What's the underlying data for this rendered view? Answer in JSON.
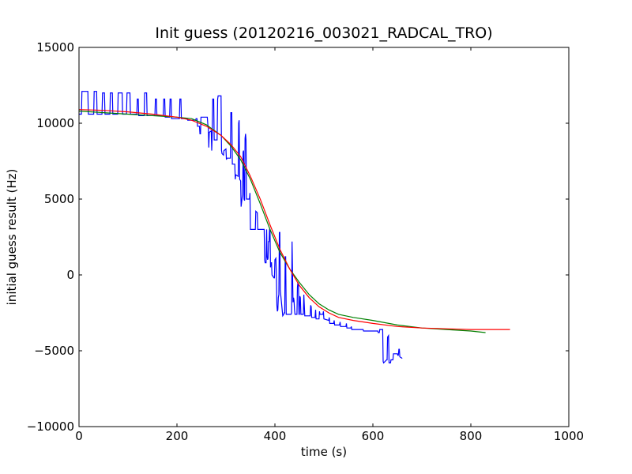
{
  "chart_data": {
    "type": "line",
    "title": "Init guess (20120216_003021_RADCAL_TRO)",
    "xlabel": "time (s)",
    "ylabel": "initial guess result (Hz)",
    "xlim": [
      0,
      1000
    ],
    "ylim": [
      -10000,
      15000
    ],
    "xticks": [
      0,
      200,
      400,
      600,
      800,
      1000
    ],
    "yticks": [
      -10000,
      -5000,
      0,
      5000,
      10000,
      15000
    ],
    "grid": false,
    "legend": "none",
    "series": [
      {
        "color": "#0000ff",
        "points": [
          [
            0,
            10600
          ],
          [
            5,
            10600
          ],
          [
            6,
            12100
          ],
          [
            18,
            12100
          ],
          [
            19,
            10600
          ],
          [
            30,
            10600
          ],
          [
            31,
            12100
          ],
          [
            36,
            12100
          ],
          [
            37,
            10600
          ],
          [
            47,
            10600
          ],
          [
            48,
            12000
          ],
          [
            52,
            12000
          ],
          [
            53,
            10600
          ],
          [
            63,
            10600
          ],
          [
            64,
            12000
          ],
          [
            68,
            12000
          ],
          [
            69,
            10600
          ],
          [
            79,
            10600
          ],
          [
            80,
            12000
          ],
          [
            88,
            12000
          ],
          [
            89,
            10600
          ],
          [
            97,
            10600
          ],
          [
            98,
            12000
          ],
          [
            104,
            12000
          ],
          [
            105,
            10600
          ],
          [
            118,
            10600
          ],
          [
            119,
            11600
          ],
          [
            121,
            11600
          ],
          [
            122,
            10500
          ],
          [
            133,
            10500
          ],
          [
            134,
            12000
          ],
          [
            138,
            12000
          ],
          [
            139,
            10500
          ],
          [
            155,
            10500
          ],
          [
            156,
            11600
          ],
          [
            158,
            11600
          ],
          [
            159,
            10500
          ],
          [
            172,
            10500
          ],
          [
            173,
            11600
          ],
          [
            175,
            11600
          ],
          [
            176,
            10400
          ],
          [
            185,
            10400
          ],
          [
            186,
            11600
          ],
          [
            188,
            11600
          ],
          [
            189,
            10300
          ],
          [
            205,
            10300
          ],
          [
            206,
            11600
          ],
          [
            208,
            11600
          ],
          [
            209,
            10300
          ],
          [
            220,
            10300
          ],
          [
            221,
            10300
          ],
          [
            222,
            10200
          ],
          [
            238,
            10200
          ],
          [
            239,
            10300
          ],
          [
            241,
            10300
          ],
          [
            242,
            9800
          ],
          [
            246,
            9800
          ],
          [
            247,
            9300
          ],
          [
            248,
            9300
          ],
          [
            249,
            10400
          ],
          [
            262,
            10400
          ],
          [
            263,
            9900
          ],
          [
            264,
            9700
          ],
          [
            265,
            8400
          ],
          [
            266,
            9400
          ],
          [
            270,
            9500
          ],
          [
            271,
            8200
          ],
          [
            272,
            9300
          ],
          [
            273,
            11600
          ],
          [
            275,
            11600
          ],
          [
            276,
            8900
          ],
          [
            282,
            8900
          ],
          [
            283,
            11600
          ],
          [
            284,
            11800
          ],
          [
            290,
            11800
          ],
          [
            291,
            8200
          ],
          [
            292,
            8000
          ],
          [
            295,
            7900
          ],
          [
            296,
            8200
          ],
          [
            300,
            8300
          ],
          [
            301,
            7600
          ],
          [
            302,
            7700
          ],
          [
            309,
            7700
          ],
          [
            310,
            10700
          ],
          [
            312,
            10700
          ],
          [
            313,
            7300
          ],
          [
            318,
            7300
          ],
          [
            319,
            6300
          ],
          [
            320,
            6600
          ],
          [
            325,
            6500
          ],
          [
            326,
            10000
          ],
          [
            327,
            10200
          ],
          [
            328,
            6300
          ],
          [
            330,
            6200
          ],
          [
            331,
            4500
          ],
          [
            333,
            5100
          ],
          [
            334,
            5300
          ],
          [
            335,
            8100
          ],
          [
            336,
            8200
          ],
          [
            337,
            5000
          ],
          [
            338,
            4900
          ],
          [
            339,
            9000
          ],
          [
            340,
            9300
          ],
          [
            341,
            8900
          ],
          [
            342,
            5000
          ],
          [
            343,
            5000
          ],
          [
            348,
            5000
          ],
          [
            349,
            5400
          ],
          [
            350,
            3000
          ],
          [
            358,
            3000
          ],
          [
            359,
            3000
          ],
          [
            360,
            3000
          ],
          [
            361,
            4200
          ],
          [
            364,
            4100
          ],
          [
            365,
            3000
          ],
          [
            378,
            3000
          ],
          [
            379,
            1000
          ],
          [
            380,
            800
          ],
          [
            382,
            800
          ],
          [
            383,
            3000
          ],
          [
            384,
            1200
          ],
          [
            385,
            1000
          ],
          [
            386,
            1100
          ],
          [
            387,
            2200
          ],
          [
            388,
            2200
          ],
          [
            389,
            3000
          ],
          [
            390,
            3000
          ],
          [
            391,
            500
          ],
          [
            392,
            800
          ],
          [
            393,
            800
          ],
          [
            394,
            0
          ],
          [
            398,
            -200
          ],
          [
            399,
            -200
          ],
          [
            400,
            1000
          ],
          [
            402,
            1100
          ],
          [
            403,
            -200
          ],
          [
            404,
            -2000
          ],
          [
            405,
            -2400
          ],
          [
            406,
            -2300
          ],
          [
            407,
            -1500
          ],
          [
            408,
            -1300
          ],
          [
            409,
            2800
          ],
          [
            410,
            2800
          ],
          [
            411,
            -1000
          ],
          [
            416,
            -2700
          ],
          [
            418,
            -2600
          ],
          [
            419,
            -2500
          ],
          [
            420,
            -2500
          ],
          [
            421,
            1200
          ],
          [
            422,
            1200
          ],
          [
            423,
            -2600
          ],
          [
            433,
            -2600
          ],
          [
            434,
            -2500
          ],
          [
            435,
            2200
          ],
          [
            437,
            -1800
          ],
          [
            438,
            -1500
          ],
          [
            439,
            -1700
          ],
          [
            440,
            -2300
          ],
          [
            441,
            -2600
          ],
          [
            445,
            -2600
          ],
          [
            446,
            -800
          ],
          [
            447,
            -500
          ],
          [
            448,
            -600
          ],
          [
            449,
            -2600
          ],
          [
            450,
            -2600
          ],
          [
            451,
            -1400
          ],
          [
            452,
            -1500
          ],
          [
            453,
            -2600
          ],
          [
            458,
            -2600
          ],
          [
            459,
            -1300
          ],
          [
            461,
            -2700
          ],
          [
            472,
            -2700
          ],
          [
            473,
            -2000
          ],
          [
            474,
            -2100
          ],
          [
            475,
            -2800
          ],
          [
            482,
            -2800
          ],
          [
            483,
            -2300
          ],
          [
            484,
            -2900
          ],
          [
            490,
            -2900
          ],
          [
            491,
            -2400
          ],
          [
            492,
            -2600
          ],
          [
            498,
            -2600
          ],
          [
            499,
            -2400
          ],
          [
            500,
            -2900
          ],
          [
            510,
            -3000
          ],
          [
            511,
            -2800
          ],
          [
            512,
            -3200
          ],
          [
            520,
            -3200
          ],
          [
            521,
            -3000
          ],
          [
            522,
            -3300
          ],
          [
            532,
            -3300
          ],
          [
            533,
            -3100
          ],
          [
            534,
            -3400
          ],
          [
            545,
            -3400
          ],
          [
            546,
            -3200
          ],
          [
            547,
            -3500
          ],
          [
            555,
            -3500
          ],
          [
            556,
            -3400
          ],
          [
            557,
            -3600
          ],
          [
            580,
            -3600
          ],
          [
            581,
            -3700
          ],
          [
            610,
            -3700
          ],
          [
            611,
            -3800
          ],
          [
            612,
            -3800
          ],
          [
            613,
            -3800
          ],
          [
            614,
            -3600
          ],
          [
            620,
            -3600
          ],
          [
            621,
            -5700
          ],
          [
            622,
            -5800
          ],
          [
            628,
            -5600
          ],
          [
            629,
            -5600
          ],
          [
            630,
            -4100
          ],
          [
            632,
            -4000
          ],
          [
            633,
            -5800
          ],
          [
            636,
            -5800
          ],
          [
            637,
            -5600
          ],
          [
            640,
            -5600
          ],
          [
            641,
            -5600
          ],
          [
            642,
            -5200
          ],
          [
            650,
            -5200
          ],
          [
            651,
            -5300
          ],
          [
            652,
            -5300
          ],
          [
            653,
            -4900
          ],
          [
            654,
            -4900
          ],
          [
            655,
            -5400
          ],
          [
            660,
            -5500
          ]
        ]
      },
      {
        "color": "#008000",
        "points": [
          [
            0,
            10800
          ],
          [
            50,
            10700
          ],
          [
            100,
            10600
          ],
          [
            150,
            10500
          ],
          [
            200,
            10400
          ],
          [
            230,
            10300
          ],
          [
            260,
            9900
          ],
          [
            290,
            9200
          ],
          [
            310,
            8500
          ],
          [
            330,
            7600
          ],
          [
            350,
            6300
          ],
          [
            370,
            4700
          ],
          [
            390,
            3000
          ],
          [
            410,
            1500
          ],
          [
            430,
            400
          ],
          [
            450,
            -500
          ],
          [
            470,
            -1300
          ],
          [
            490,
            -1900
          ],
          [
            510,
            -2300
          ],
          [
            530,
            -2600
          ],
          [
            560,
            -2800
          ],
          [
            600,
            -3000
          ],
          [
            650,
            -3300
          ],
          [
            700,
            -3500
          ],
          [
            750,
            -3600
          ],
          [
            800,
            -3700
          ],
          [
            830,
            -3800
          ]
        ]
      },
      {
        "color": "#ff0000",
        "points": [
          [
            0,
            10900
          ],
          [
            50,
            10850
          ],
          [
            100,
            10750
          ],
          [
            150,
            10600
          ],
          [
            200,
            10400
          ],
          [
            230,
            10200
          ],
          [
            260,
            9800
          ],
          [
            290,
            9200
          ],
          [
            310,
            8600
          ],
          [
            330,
            7800
          ],
          [
            350,
            6500
          ],
          [
            370,
            5000
          ],
          [
            390,
            3300
          ],
          [
            410,
            1700
          ],
          [
            430,
            400
          ],
          [
            450,
            -700
          ],
          [
            470,
            -1500
          ],
          [
            490,
            -2100
          ],
          [
            510,
            -2500
          ],
          [
            530,
            -2800
          ],
          [
            560,
            -3000
          ],
          [
            600,
            -3200
          ],
          [
            650,
            -3400
          ],
          [
            700,
            -3500
          ],
          [
            750,
            -3550
          ],
          [
            800,
            -3600
          ],
          [
            880,
            -3600
          ]
        ]
      }
    ]
  }
}
